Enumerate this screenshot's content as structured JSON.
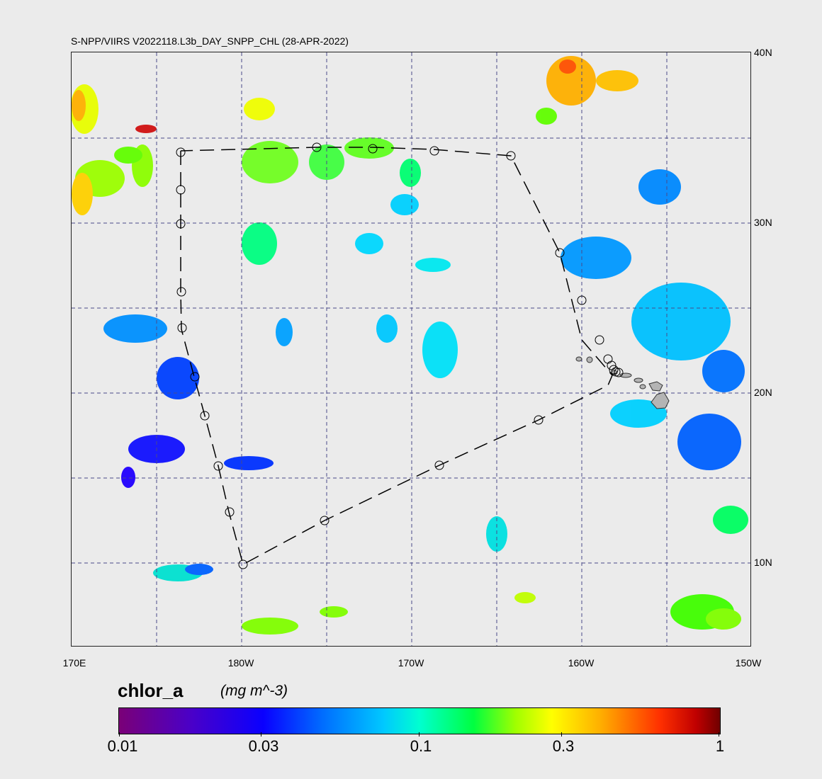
{
  "map": {
    "title": "S-NPP/VIIRS V2022118.L3b_DAY_SNPP_CHL (28-APR-2022)",
    "lon_labels": [
      "170E",
      "180W",
      "170W",
      "160W",
      "150W"
    ],
    "lat_labels": [
      "40N",
      "30N",
      "20N",
      "10N"
    ],
    "lon_range": [
      170,
      210
    ],
    "lat_range": [
      5.5,
      40
    ],
    "grid": true,
    "land": "Hawaiian Islands",
    "track_line_style": "dashed",
    "track_marker": "circle"
  },
  "colorbar": {
    "variable": "chlor_a",
    "units": "(mg m^-3)",
    "scale": "log",
    "range": [
      0.01,
      1
    ],
    "ticks": [
      "0.01",
      "0.03",
      "0.1",
      "0.3",
      "1"
    ]
  },
  "colors": {
    "background": "#ebebeb",
    "grid": "#4a4a8a",
    "land": "#b4b4b4"
  }
}
